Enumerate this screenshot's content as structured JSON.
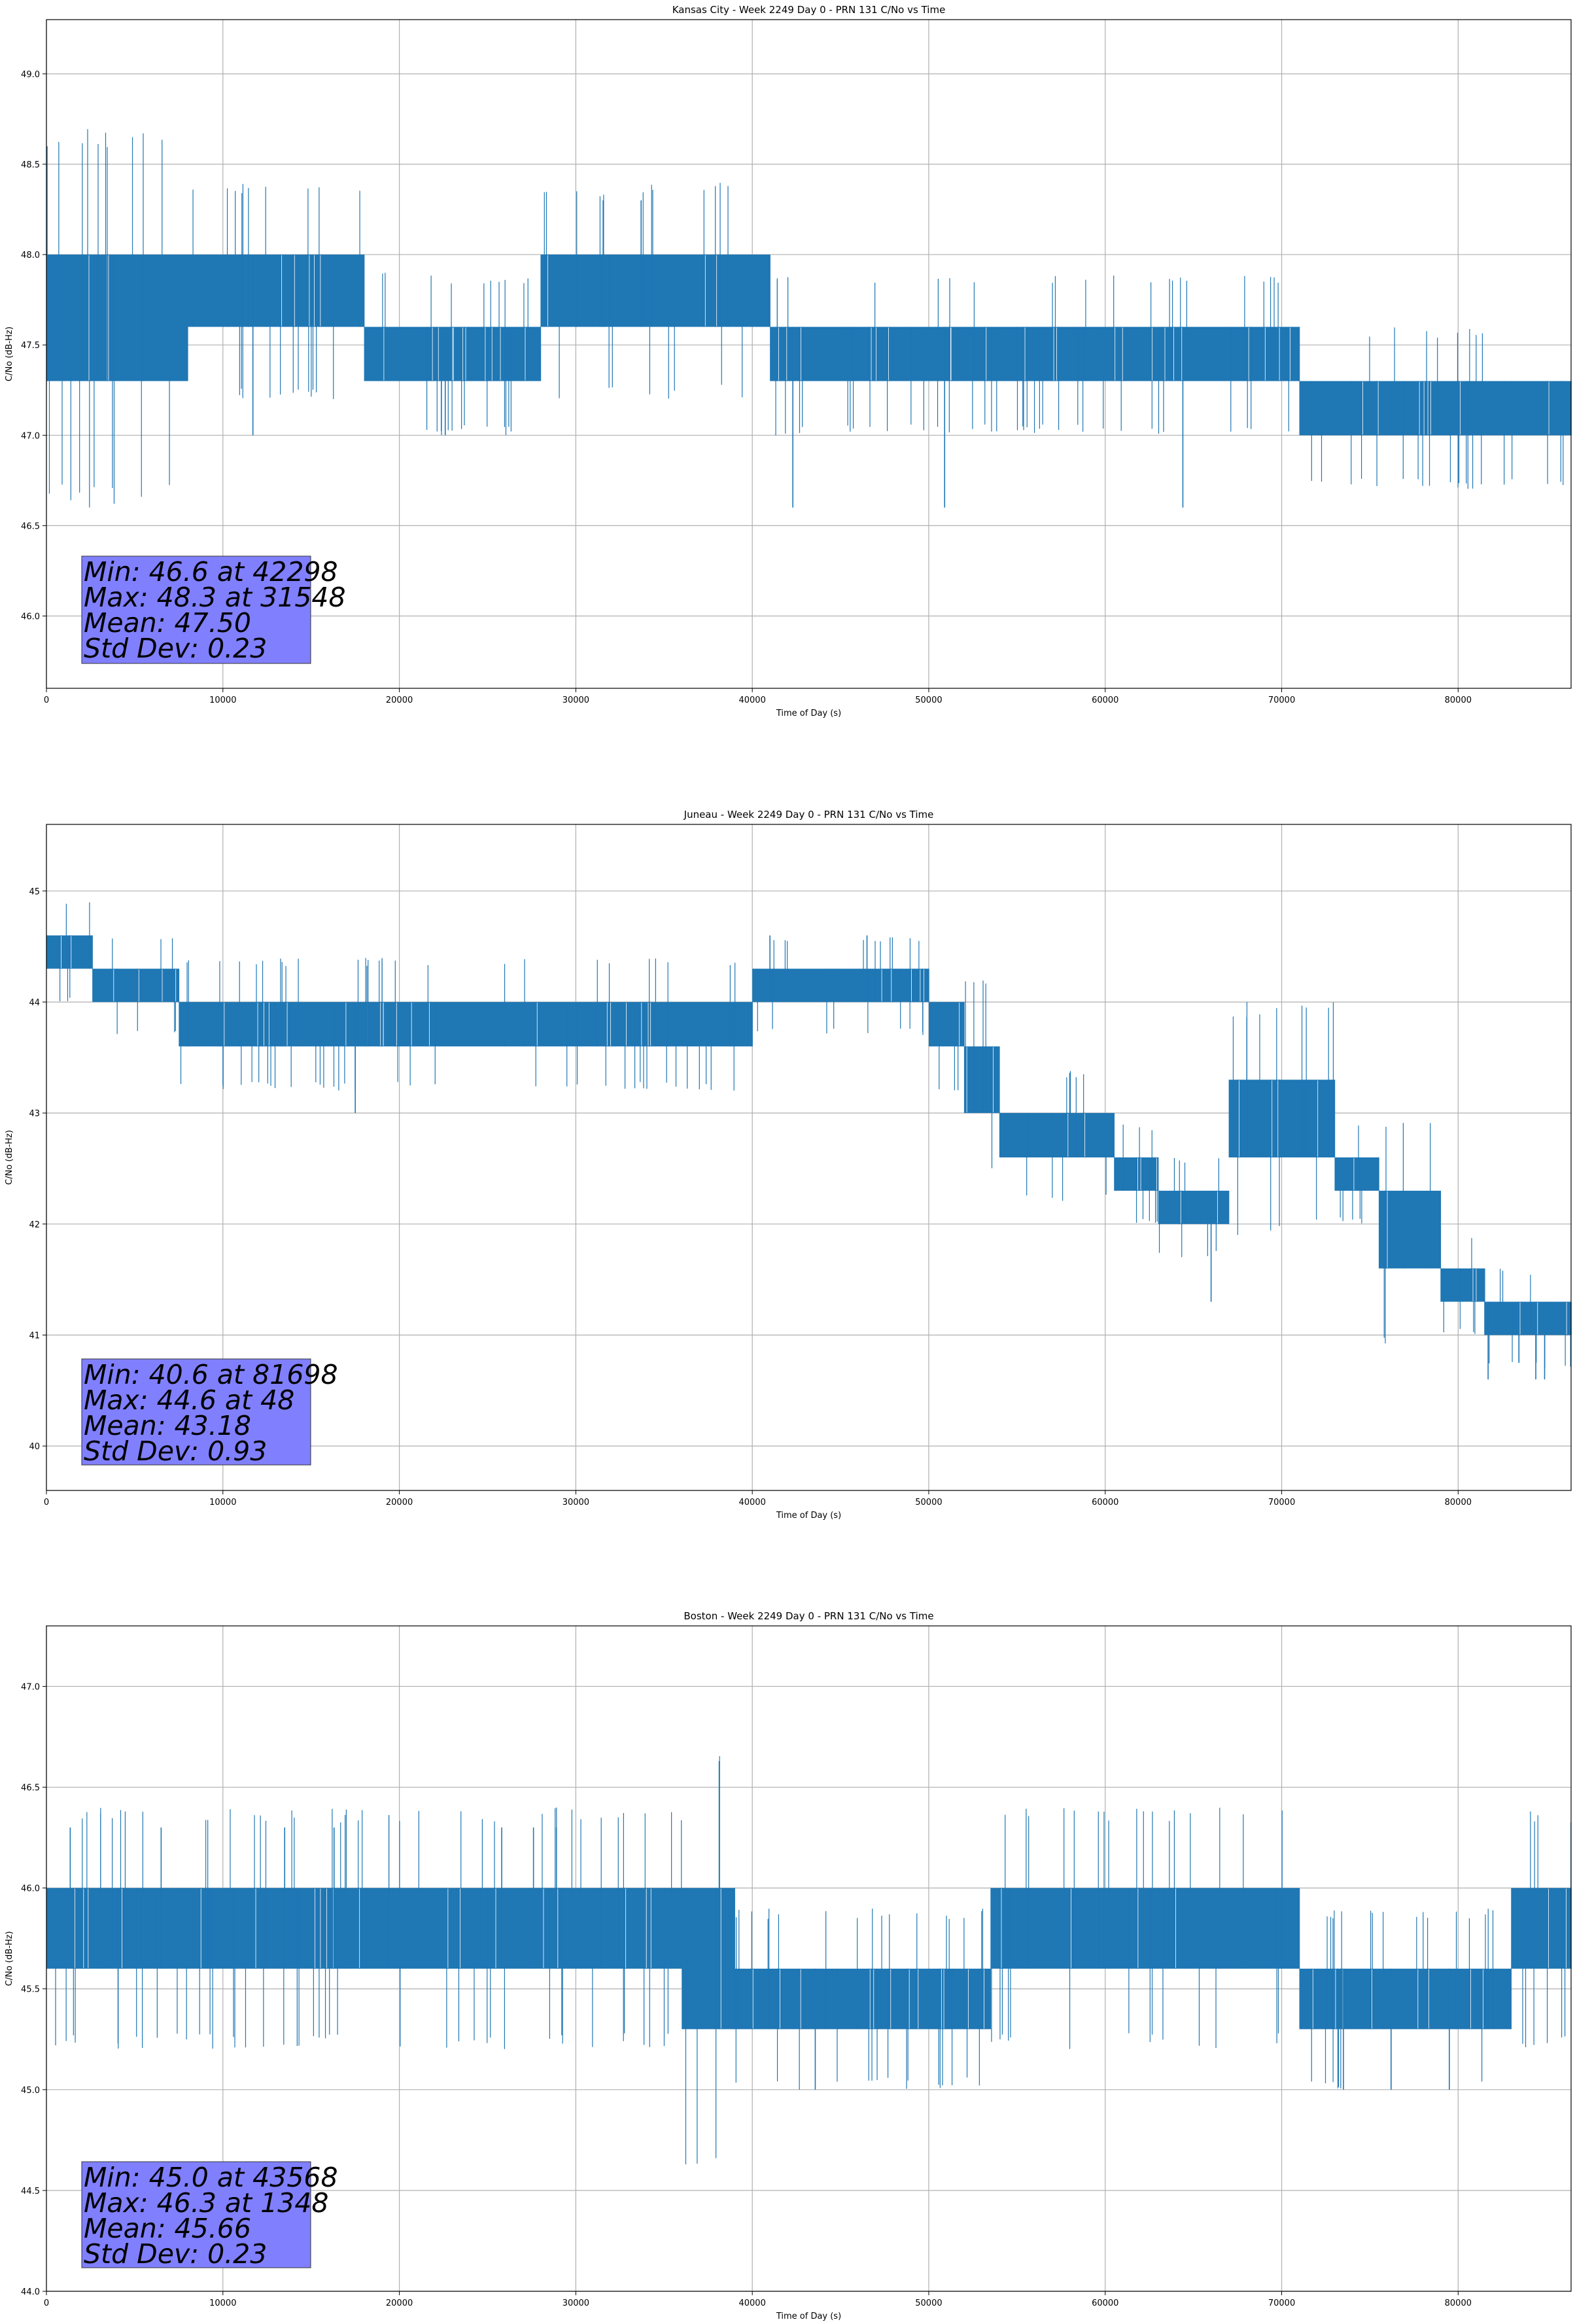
{
  "chart_data": [
    {
      "type": "line",
      "title": "Kansas City - Week 2249 Day 0 - PRN 131 C/No vs Time",
      "xlabel": "Time of Day (s)",
      "ylabel": "C/No (dB-Hz)",
      "xlim": [
        0,
        86400
      ],
      "ylim": [
        45.6,
        49.3
      ],
      "xticks": [
        "0",
        "10000",
        "20000",
        "30000",
        "40000",
        "50000",
        "60000",
        "70000",
        "80000"
      ],
      "yticks": [
        "46.0",
        "46.5",
        "47.0",
        "47.5",
        "48.0",
        "48.5",
        "49.0"
      ],
      "grid": true,
      "series_color": "#1f77b4",
      "band_segments": [
        {
          "x": [
            0,
            8000
          ],
          "y": [
            47.3,
            48.0
          ]
        },
        {
          "x": [
            8000,
            18000
          ],
          "y": [
            47.6,
            48.0
          ]
        },
        {
          "x": [
            18000,
            28000
          ],
          "y": [
            47.3,
            47.6
          ]
        },
        {
          "x": [
            28000,
            41000
          ],
          "y": [
            47.6,
            48.0
          ]
        },
        {
          "x": [
            41000,
            57000
          ],
          "y": [
            47.3,
            47.6
          ]
        },
        {
          "x": [
            57000,
            71000
          ],
          "y": [
            47.3,
            47.6
          ]
        },
        {
          "x": [
            71000,
            86400
          ],
          "y": [
            47.0,
            47.3
          ]
        }
      ],
      "spikes": [
        {
          "x": 11700,
          "y": 47.0
        },
        {
          "x": 22600,
          "y": 47.0
        },
        {
          "x": 31548,
          "y": 48.3
        },
        {
          "x": 33700,
          "y": 48.3
        },
        {
          "x": 42298,
          "y": 46.6
        },
        {
          "x": 50900,
          "y": 46.6
        },
        {
          "x": 64400,
          "y": 46.6
        }
      ],
      "stats": {
        "min": "Min: 46.6 at 42298",
        "max": "Max: 48.3 at 31548",
        "mean": "Mean: 47.50",
        "std": "Std Dev: 0.23"
      },
      "stats_box_color": "#8080ff"
    },
    {
      "type": "line",
      "title": "Juneau - Week 2249 Day 0 - PRN 131 C/No vs Time",
      "xlabel": "Time of Day (s)",
      "ylabel": "C/No (dB-Hz)",
      "xlim": [
        0,
        86400
      ],
      "ylim": [
        39.6,
        45.6
      ],
      "xticks": [
        "0",
        "10000",
        "20000",
        "30000",
        "40000",
        "50000",
        "60000",
        "70000",
        "80000"
      ],
      "yticks": [
        "40",
        "41",
        "42",
        "43",
        "44",
        "45"
      ],
      "grid": true,
      "series_color": "#1f77b4",
      "band_segments": [
        {
          "x": [
            0,
            2600
          ],
          "y": [
            44.3,
            44.6
          ]
        },
        {
          "x": [
            2600,
            7500
          ],
          "y": [
            44.0,
            44.3
          ]
        },
        {
          "x": [
            7500,
            40000
          ],
          "y": [
            43.6,
            44.0
          ]
        },
        {
          "x": [
            40000,
            50000
          ],
          "y": [
            44.0,
            44.3
          ]
        },
        {
          "x": [
            50000,
            52000
          ],
          "y": [
            43.6,
            44.0
          ]
        },
        {
          "x": [
            52000,
            54000
          ],
          "y": [
            43.0,
            43.6
          ]
        },
        {
          "x": [
            54000,
            60500
          ],
          "y": [
            42.6,
            43.0
          ]
        },
        {
          "x": [
            60500,
            63000
          ],
          "y": [
            42.3,
            42.6
          ]
        },
        {
          "x": [
            63000,
            67000
          ],
          "y": [
            42.0,
            42.3
          ]
        },
        {
          "x": [
            67000,
            73000
          ],
          "y": [
            42.6,
            43.3
          ]
        },
        {
          "x": [
            73000,
            75500
          ],
          "y": [
            42.3,
            42.6
          ]
        },
        {
          "x": [
            75500,
            79000
          ],
          "y": [
            41.6,
            42.3
          ]
        },
        {
          "x": [
            79000,
            81500
          ],
          "y": [
            41.3,
            41.6
          ]
        },
        {
          "x": [
            81500,
            86400
          ],
          "y": [
            41.0,
            41.3
          ]
        }
      ],
      "spikes": [
        {
          "x": 48,
          "y": 44.6
        },
        {
          "x": 17500,
          "y": 43.0
        },
        {
          "x": 41000,
          "y": 44.6
        },
        {
          "x": 46500,
          "y": 44.6
        },
        {
          "x": 66000,
          "y": 41.3
        },
        {
          "x": 81698,
          "y": 40.6
        },
        {
          "x": 84400,
          "y": 40.6
        },
        {
          "x": 84900,
          "y": 40.6
        }
      ],
      "stats": {
        "min": "Min: 40.6 at 81698",
        "max": "Max: 44.6 at 48",
        "mean": "Mean: 43.18",
        "std": "Std Dev: 0.93"
      },
      "stats_box_color": "#8080ff"
    },
    {
      "type": "line",
      "title": "Boston - Week 2249 Day 0 - PRN 131 C/No vs Time",
      "xlabel": "Time of Day (s)",
      "ylabel": "C/No (dB-Hz)",
      "xlim": [
        0,
        86400
      ],
      "ylim": [
        44.0,
        47.3
      ],
      "xticks": [
        "0",
        "10000",
        "20000",
        "30000",
        "40000",
        "50000",
        "60000",
        "70000",
        "80000"
      ],
      "yticks": [
        "44.0",
        "44.5",
        "45.0",
        "45.5",
        "46.0",
        "46.5",
        "47.0"
      ],
      "grid": true,
      "series_color": "#1f77b4",
      "band_segments": [
        {
          "x": [
            0,
            36000
          ],
          "y": [
            45.6,
            46.0
          ]
        },
        {
          "x": [
            36000,
            39000
          ],
          "y": [
            45.3,
            46.0
          ]
        },
        {
          "x": [
            39000,
            53500
          ],
          "y": [
            45.3,
            45.6
          ]
        },
        {
          "x": [
            53500,
            71000
          ],
          "y": [
            45.6,
            46.0
          ]
        },
        {
          "x": [
            71000,
            83000
          ],
          "y": [
            45.3,
            45.6
          ]
        },
        {
          "x": [
            83000,
            86400
          ],
          "y": [
            45.6,
            46.0
          ]
        }
      ],
      "spikes": [
        {
          "x": 1348,
          "y": 46.3
        },
        {
          "x": 6500,
          "y": 46.3
        },
        {
          "x": 13500,
          "y": 46.3
        },
        {
          "x": 16300,
          "y": 46.3
        },
        {
          "x": 25800,
          "y": 46.3
        },
        {
          "x": 27600,
          "y": 46.3
        },
        {
          "x": 28900,
          "y": 46.3
        },
        {
          "x": 43568,
          "y": 45.0
        },
        {
          "x": 73500,
          "y": 45.0
        },
        {
          "x": 76200,
          "y": 45.0
        },
        {
          "x": 79500,
          "y": 45.0
        }
      ],
      "stats": {
        "min": "Min: 45.0 at 43568",
        "max": "Max: 46.3 at 1348",
        "mean": "Mean: 45.66",
        "std": "Std Dev: 0.23"
      },
      "stats_box_color": "#8080ff"
    }
  ]
}
